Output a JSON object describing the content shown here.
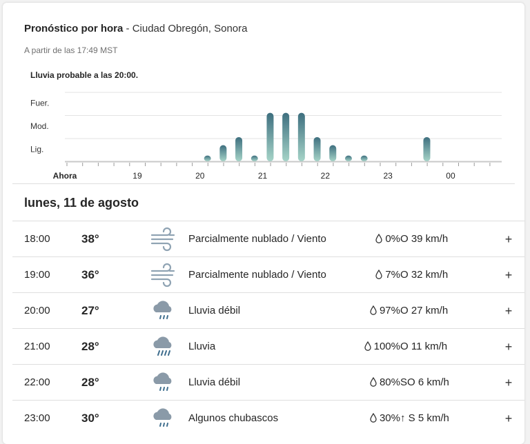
{
  "header": {
    "title": "Pronóstico por hora",
    "separator": " - ",
    "location": "Ciudad Obregón, Sonora",
    "subtitle": "A partir de las 17:49 MST"
  },
  "chart_data": {
    "type": "bar",
    "title": "Lluvia probable a las 20:00.",
    "y_categories": [
      "Lig.",
      "Mod.",
      "Fuer."
    ],
    "ylim": [
      0,
      3
    ],
    "grid": true,
    "x_tick_labels": [
      "Ahora",
      "19",
      "20",
      "21",
      "22",
      "23",
      "00"
    ],
    "x_tick_hours": [
      17.8,
      19,
      20,
      21,
      22,
      23,
      24
    ],
    "x": [
      20.12,
      20.37,
      20.62,
      20.87,
      21.12,
      21.37,
      21.62,
      21.87,
      22.12,
      22.37,
      22.62,
      23.62
    ],
    "values": [
      0.25,
      0.7,
      1.05,
      0.25,
      2.1,
      2.1,
      2.1,
      1.05,
      0.7,
      0.25,
      0.25,
      1.05
    ],
    "colors": {
      "light": "#a6d4c8",
      "heavy": "#3e6f7f",
      "grid": "#e3e3e3",
      "axis": "#c9c9c9"
    }
  },
  "day_heading": "lunes, 11 de agosto",
  "rows": [
    {
      "time": "18:00",
      "temp": "38°",
      "icon": "wind-icon",
      "condition": "Parcialmente nublado / Viento",
      "precip": "0%",
      "wind": "O 39 km/h",
      "wind_arrow": "",
      "expand": "+"
    },
    {
      "time": "19:00",
      "temp": "36°",
      "icon": "wind-icon",
      "condition": "Parcialmente nublado / Viento",
      "precip": "7%",
      "wind": "O 32 km/h",
      "wind_arrow": "",
      "expand": "+"
    },
    {
      "time": "20:00",
      "temp": "27°",
      "icon": "light-rain-icon",
      "condition": "Lluvia débil",
      "precip": "97%",
      "wind": "O 27 km/h",
      "wind_arrow": "",
      "expand": "+"
    },
    {
      "time": "21:00",
      "temp": "28°",
      "icon": "rain-icon",
      "condition": "Lluvia",
      "precip": "100%",
      "wind": "O 11 km/h",
      "wind_arrow": "",
      "expand": "+"
    },
    {
      "time": "22:00",
      "temp": "28°",
      "icon": "light-rain-icon",
      "condition": "Lluvia débil",
      "precip": "80%",
      "wind": "SO 6 km/h",
      "wind_arrow": "",
      "expand": "+"
    },
    {
      "time": "23:00",
      "temp": "30°",
      "icon": "light-rain-icon",
      "condition": "Algunos chubascos",
      "precip": "30%",
      "wind": "S 5 km/h",
      "wind_arrow": "↑ ",
      "expand": "+"
    }
  ]
}
